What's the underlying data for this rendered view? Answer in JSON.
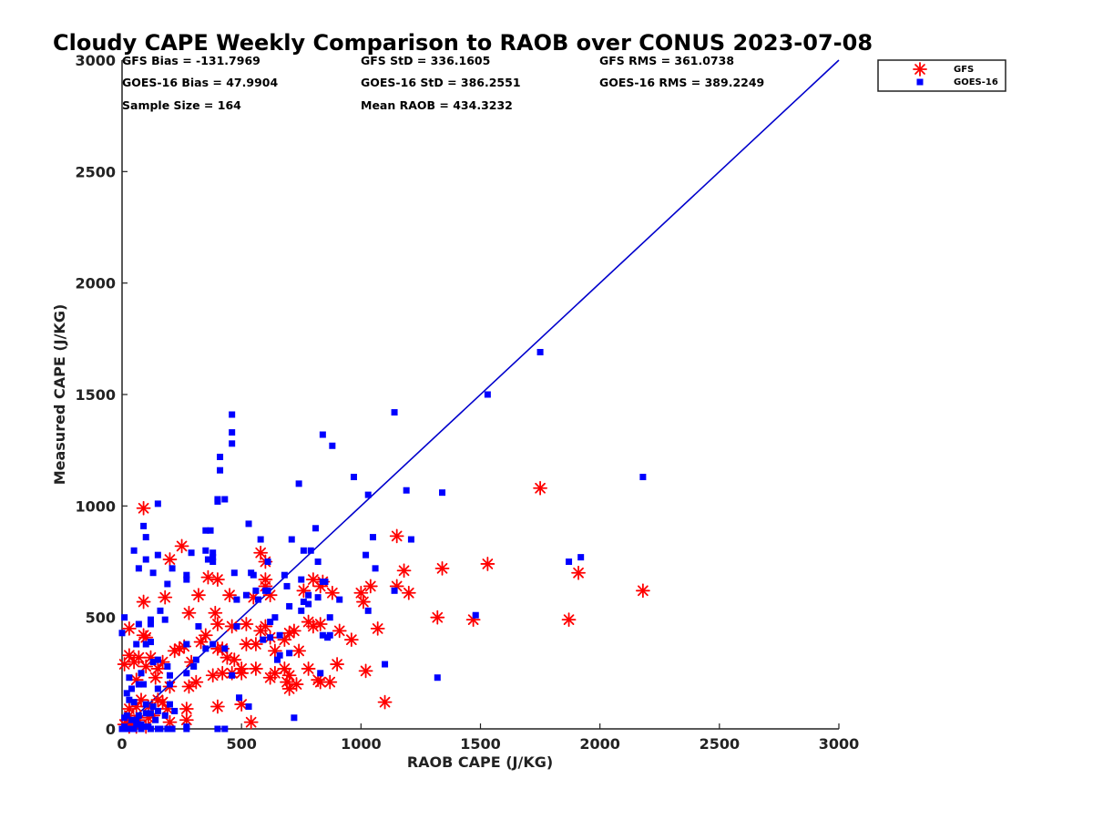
{
  "chart_data": {
    "type": "scatter",
    "title": "Cloudy CAPE Weekly Comparison to RAOB over CONUS 2023-07-08",
    "xlabel": "RAOB CAPE (J/KG)",
    "ylabel": "Measured CAPE (J/KG)",
    "xlim": [
      0,
      3000
    ],
    "ylim": [
      0,
      3000
    ],
    "xticks": [
      "0",
      "500",
      "1000",
      "1500",
      "2000",
      "2500",
      "3000"
    ],
    "yticks": [
      "0",
      "500",
      "1000",
      "1500",
      "2000",
      "2500",
      "3000"
    ],
    "legend_position": "top-right, outside plot",
    "stats": {
      "gfs_bias": "GFS Bias = -131.7969",
      "gfs_std": "GFS StD = 336.1605",
      "gfs_rms": "GFS RMS = 361.0738",
      "goes_bias": "GOES-16 Bias = 47.9904",
      "goes_std": "GOES-16 StD = 386.2551",
      "goes_rms": "GOES-16 RMS = 389.2249",
      "sample_size": "Sample Size = 164",
      "mean_raob": "Mean RAOB = 434.3232"
    },
    "reference_line": {
      "x": [
        0,
        3000
      ],
      "y": [
        0,
        3000
      ],
      "color": "#0000cc"
    },
    "series": [
      {
        "name": "GFS",
        "marker": "asterisk",
        "color": "#ff0000",
        "points": [
          [
            90,
            990
          ],
          [
            1750,
            1080
          ],
          [
            1150,
            865
          ],
          [
            250,
            820
          ],
          [
            580,
            790
          ],
          [
            200,
            760
          ],
          [
            600,
            750
          ],
          [
            1180,
            710
          ],
          [
            1340,
            720
          ],
          [
            1530,
            740
          ],
          [
            1910,
            700
          ],
          [
            400,
            670
          ],
          [
            600,
            670
          ],
          [
            360,
            680
          ],
          [
            600,
            640
          ],
          [
            800,
            670
          ],
          [
            840,
            660
          ],
          [
            1150,
            640
          ],
          [
            1040,
            640
          ],
          [
            1200,
            610
          ],
          [
            1000,
            610
          ],
          [
            1010,
            570
          ],
          [
            90,
            570
          ],
          [
            180,
            590
          ],
          [
            320,
            600
          ],
          [
            450,
            600
          ],
          [
            550,
            590
          ],
          [
            760,
            620
          ],
          [
            830,
            640
          ],
          [
            880,
            610
          ],
          [
            2180,
            620
          ],
          [
            620,
            600
          ],
          [
            1320,
            500
          ],
          [
            1470,
            490
          ],
          [
            1870,
            490
          ],
          [
            280,
            520
          ],
          [
            390,
            520
          ],
          [
            460,
            460
          ],
          [
            30,
            450
          ],
          [
            400,
            470
          ],
          [
            700,
            430
          ],
          [
            720,
            440
          ],
          [
            780,
            480
          ],
          [
            800,
            460
          ],
          [
            830,
            470
          ],
          [
            910,
            440
          ],
          [
            1070,
            450
          ],
          [
            90,
            420
          ],
          [
            100,
            410
          ],
          [
            350,
            420
          ],
          [
            330,
            390
          ],
          [
            520,
            470
          ],
          [
            580,
            440
          ],
          [
            600,
            460
          ],
          [
            620,
            410
          ],
          [
            680,
            400
          ],
          [
            240,
            360
          ],
          [
            420,
            360
          ],
          [
            440,
            320
          ],
          [
            560,
            380
          ],
          [
            640,
            350
          ],
          [
            740,
            350
          ],
          [
            960,
            400
          ],
          [
            900,
            290
          ],
          [
            30,
            330
          ],
          [
            50,
            300
          ],
          [
            70,
            320
          ],
          [
            100,
            280
          ],
          [
            120,
            320
          ],
          [
            170,
            300
          ],
          [
            220,
            350
          ],
          [
            260,
            370
          ],
          [
            290,
            300
          ],
          [
            310,
            210
          ],
          [
            400,
            360
          ],
          [
            470,
            310
          ],
          [
            500,
            270
          ],
          [
            560,
            270
          ],
          [
            500,
            250
          ],
          [
            520,
            380
          ],
          [
            620,
            230
          ],
          [
            680,
            270
          ],
          [
            640,
            250
          ],
          [
            700,
            240
          ],
          [
            690,
            210
          ],
          [
            730,
            200
          ],
          [
            780,
            270
          ],
          [
            820,
            220
          ],
          [
            830,
            210
          ],
          [
            870,
            210
          ],
          [
            1020,
            260
          ],
          [
            10,
            290
          ],
          [
            60,
            220
          ],
          [
            140,
            230
          ],
          [
            150,
            270
          ],
          [
            200,
            190
          ],
          [
            280,
            190
          ],
          [
            380,
            240
          ],
          [
            400,
            100
          ],
          [
            420,
            250
          ],
          [
            460,
            250
          ],
          [
            500,
            110
          ],
          [
            700,
            180
          ],
          [
            110,
            100
          ],
          [
            60,
            100
          ],
          [
            30,
            90
          ],
          [
            170,
            120
          ],
          [
            190,
            90
          ],
          [
            270,
            90
          ],
          [
            150,
            130
          ],
          [
            110,
            50
          ],
          [
            80,
            130
          ],
          [
            30,
            60
          ],
          [
            270,
            40
          ],
          [
            200,
            30
          ],
          [
            540,
            30
          ],
          [
            1100,
            120
          ],
          [
            10,
            20
          ],
          [
            30,
            10
          ],
          [
            60,
            10
          ],
          [
            100,
            10
          ],
          [
            40,
            20
          ],
          [
            20,
            40
          ],
          [
            130,
            60
          ],
          [
            70,
            40
          ]
        ]
      },
      {
        "name": "GOES-16",
        "marker": "square",
        "color": "#0000ff",
        "points": [
          [
            1750,
            1690
          ],
          [
            1530,
            1500
          ],
          [
            460,
            1410
          ],
          [
            460,
            1330
          ],
          [
            840,
            1320
          ],
          [
            880,
            1270
          ],
          [
            460,
            1280
          ],
          [
            410,
            1220
          ],
          [
            410,
            1160
          ],
          [
            1140,
            1420
          ],
          [
            740,
            1100
          ],
          [
            970,
            1130
          ],
          [
            2180,
            1130
          ],
          [
            1190,
            1070
          ],
          [
            1340,
            1060
          ],
          [
            1030,
            1050
          ],
          [
            400,
            1030
          ],
          [
            430,
            1030
          ],
          [
            400,
            1020
          ],
          [
            150,
            1010
          ],
          [
            530,
            920
          ],
          [
            90,
            910
          ],
          [
            810,
            900
          ],
          [
            350,
            890
          ],
          [
            370,
            890
          ],
          [
            1050,
            860
          ],
          [
            210,
            720
          ],
          [
            70,
            720
          ],
          [
            100,
            760
          ],
          [
            100,
            860
          ],
          [
            130,
            700
          ],
          [
            50,
            800
          ],
          [
            150,
            780
          ],
          [
            290,
            790
          ],
          [
            380,
            790
          ],
          [
            470,
            700
          ],
          [
            540,
            700
          ],
          [
            550,
            690
          ],
          [
            580,
            850
          ],
          [
            710,
            850
          ],
          [
            760,
            800
          ],
          [
            790,
            800
          ],
          [
            820,
            750
          ],
          [
            1210,
            850
          ],
          [
            1870,
            750
          ],
          [
            1920,
            770
          ],
          [
            1020,
            780
          ],
          [
            1060,
            720
          ],
          [
            190,
            650
          ],
          [
            270,
            670
          ],
          [
            270,
            690
          ],
          [
            350,
            800
          ],
          [
            360,
            760
          ],
          [
            380,
            750
          ],
          [
            380,
            770
          ],
          [
            610,
            750
          ],
          [
            680,
            690
          ],
          [
            600,
            620
          ],
          [
            610,
            620
          ],
          [
            560,
            620
          ],
          [
            690,
            640
          ],
          [
            750,
            670
          ],
          [
            840,
            660
          ],
          [
            850,
            660
          ],
          [
            780,
            600
          ],
          [
            780,
            560
          ],
          [
            820,
            590
          ],
          [
            910,
            580
          ],
          [
            1140,
            620
          ],
          [
            1030,
            530
          ],
          [
            10,
            500
          ],
          [
            70,
            470
          ],
          [
            120,
            470
          ],
          [
            120,
            490
          ],
          [
            180,
            490
          ],
          [
            160,
            530
          ],
          [
            320,
            460
          ],
          [
            480,
            580
          ],
          [
            520,
            600
          ],
          [
            570,
            580
          ],
          [
            620,
            480
          ],
          [
            640,
            500
          ],
          [
            660,
            420
          ],
          [
            620,
            410
          ],
          [
            590,
            400
          ],
          [
            700,
            550
          ],
          [
            750,
            530
          ],
          [
            870,
            500
          ],
          [
            860,
            410
          ],
          [
            840,
            420
          ],
          [
            1480,
            510
          ],
          [
            0,
            430
          ],
          [
            60,
            380
          ],
          [
            100,
            380
          ],
          [
            120,
            390
          ],
          [
            270,
            380
          ],
          [
            310,
            310
          ],
          [
            350,
            360
          ],
          [
            380,
            380
          ],
          [
            430,
            360
          ],
          [
            480,
            460
          ],
          [
            490,
            140
          ],
          [
            530,
            100
          ],
          [
            760,
            570
          ],
          [
            870,
            420
          ],
          [
            660,
            330
          ],
          [
            650,
            310
          ],
          [
            700,
            340
          ],
          [
            830,
            250
          ],
          [
            1100,
            290
          ],
          [
            1320,
            230
          ],
          [
            720,
            50
          ],
          [
            20,
            160
          ],
          [
            40,
            180
          ],
          [
            70,
            200
          ],
          [
            80,
            250
          ],
          [
            130,
            300
          ],
          [
            150,
            310
          ],
          [
            190,
            280
          ],
          [
            200,
            240
          ],
          [
            200,
            200
          ],
          [
            270,
            250
          ],
          [
            300,
            280
          ],
          [
            460,
            240
          ],
          [
            30,
            230
          ],
          [
            90,
            200
          ],
          [
            150,
            180
          ],
          [
            100,
            110
          ],
          [
            120,
            70
          ],
          [
            200,
            110
          ],
          [
            180,
            60
          ],
          [
            30,
            130
          ],
          [
            50,
            120
          ],
          [
            130,
            100
          ],
          [
            150,
            80
          ],
          [
            220,
            80
          ],
          [
            70,
            60
          ],
          [
            60,
            20
          ],
          [
            20,
            0
          ],
          [
            80,
            0
          ],
          [
            120,
            0
          ],
          [
            160,
            0
          ],
          [
            190,
            0
          ],
          [
            210,
            0
          ],
          [
            270,
            0
          ],
          [
            400,
            0
          ],
          [
            430,
            0
          ],
          [
            10,
            50
          ],
          [
            20,
            60
          ],
          [
            40,
            40
          ],
          [
            80,
            20
          ],
          [
            100,
            70
          ],
          [
            30,
            0
          ],
          [
            50,
            0
          ],
          [
            90,
            10
          ],
          [
            110,
            10
          ],
          [
            270,
            10
          ],
          [
            150,
            0
          ],
          [
            0,
            0
          ],
          [
            10,
            10
          ],
          [
            60,
            40
          ],
          [
            140,
            40
          ]
        ]
      }
    ]
  }
}
